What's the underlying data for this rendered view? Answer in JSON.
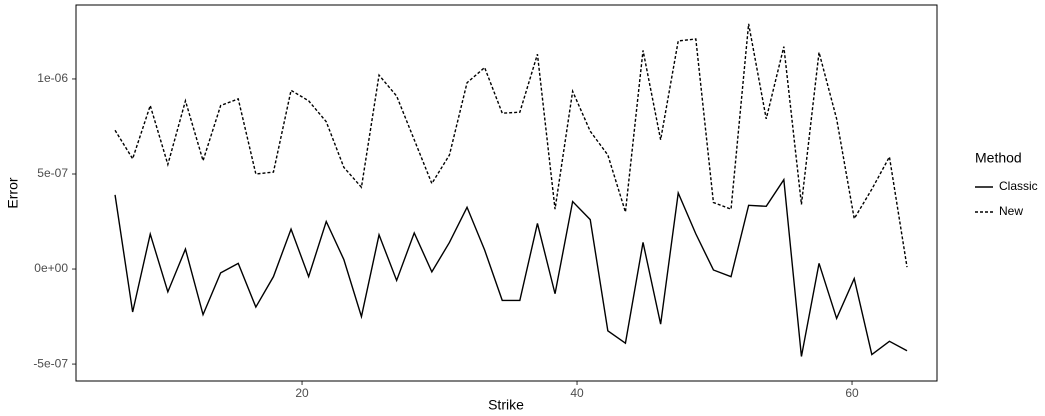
{
  "chart_data": {
    "type": "line",
    "x_label": "Strike",
    "y_label": "Error",
    "legend_title": "Method",
    "legend": "right",
    "x": [
      6.4,
      7.68,
      8.96,
      10.24,
      11.52,
      12.8,
      14.08,
      15.36,
      16.64,
      17.92,
      19.2,
      20.48,
      21.76,
      23.04,
      24.32,
      25.6,
      26.88,
      28.16,
      29.44,
      30.72,
      32,
      33.28,
      34.56,
      35.84,
      37.12,
      38.4,
      39.68,
      40.96,
      42.24,
      43.52,
      44.8,
      46.08,
      47.36,
      48.64,
      49.92,
      51.2,
      52.48,
      53.76,
      55.04,
      56.32,
      57.6,
      58.88,
      60.16,
      61.44,
      62.72,
      64
    ],
    "series": [
      {
        "name": "Classic",
        "color": "#000000",
        "linetype": "solid",
        "values": [
          3.9e-07,
          -2.26e-07,
          1.84e-07,
          -1.2e-07,
          1.05e-07,
          -2.4e-07,
          -2e-08,
          3e-08,
          -2e-07,
          -4e-08,
          2.1e-07,
          -4e-08,
          2.5e-07,
          5e-08,
          -2.5e-07,
          1.8e-07,
          -6e-08,
          1.9e-07,
          -1.5e-08,
          1.4e-07,
          3.25e-07,
          1e-07,
          -1.65e-07,
          -1.65e-07,
          2.4e-07,
          -1.3e-07,
          3.55e-07,
          2.6e-07,
          -3.25e-07,
          -3.9e-07,
          1.4e-07,
          -2.9e-07,
          4e-07,
          1.85e-07,
          -5e-09,
          -4e-08,
          3.35e-07,
          3.3e-07,
          4.7e-07,
          -4.6e-07,
          3e-08,
          -2.6e-07,
          -5e-08,
          -4.5e-07,
          -3.8e-07,
          -4.3e-07
        ]
      },
      {
        "name": "New",
        "color": "#000000",
        "linetype": "dashed",
        "values": [
          7.3e-07,
          5.8e-07,
          8.6e-07,
          5.5e-07,
          8.85e-07,
          5.7e-07,
          8.6e-07,
          8.95e-07,
          5e-07,
          5.1e-07,
          9.4e-07,
          8.85e-07,
          7.75e-07,
          5.35e-07,
          4.3e-07,
          1.02e-06,
          9.1e-07,
          6.8e-07,
          4.5e-07,
          6e-07,
          9.8e-07,
          1.06e-06,
          8.2e-07,
          8.25e-07,
          1.13e-06,
          3.15e-07,
          9.35e-07,
          7.25e-07,
          6e-07,
          3e-07,
          1.15e-06,
          6.8e-07,
          1.2e-06,
          1.21e-06,
          3.5e-07,
          3.15e-07,
          1.29e-06,
          7.9e-07,
          1.17e-06,
          3.4e-07,
          1.14e-06,
          7.9e-07,
          2.65e-07,
          4.2e-07,
          5.9e-07,
          1e-08
        ]
      }
    ],
    "xlim": [
      3.56,
      66.18
    ],
    "xticks": [
      20,
      40,
      60
    ],
    "ylim": [
      -5.89e-07,
      1.389e-06
    ],
    "yticks": [
      {
        "value": -5e-07,
        "label": "-5e-07"
      },
      {
        "value": 0,
        "label": "0e+00"
      },
      {
        "value": 5e-07,
        "label": "5e-07"
      },
      {
        "value": 1e-06,
        "label": "1e-06"
      }
    ],
    "grid": false
  }
}
